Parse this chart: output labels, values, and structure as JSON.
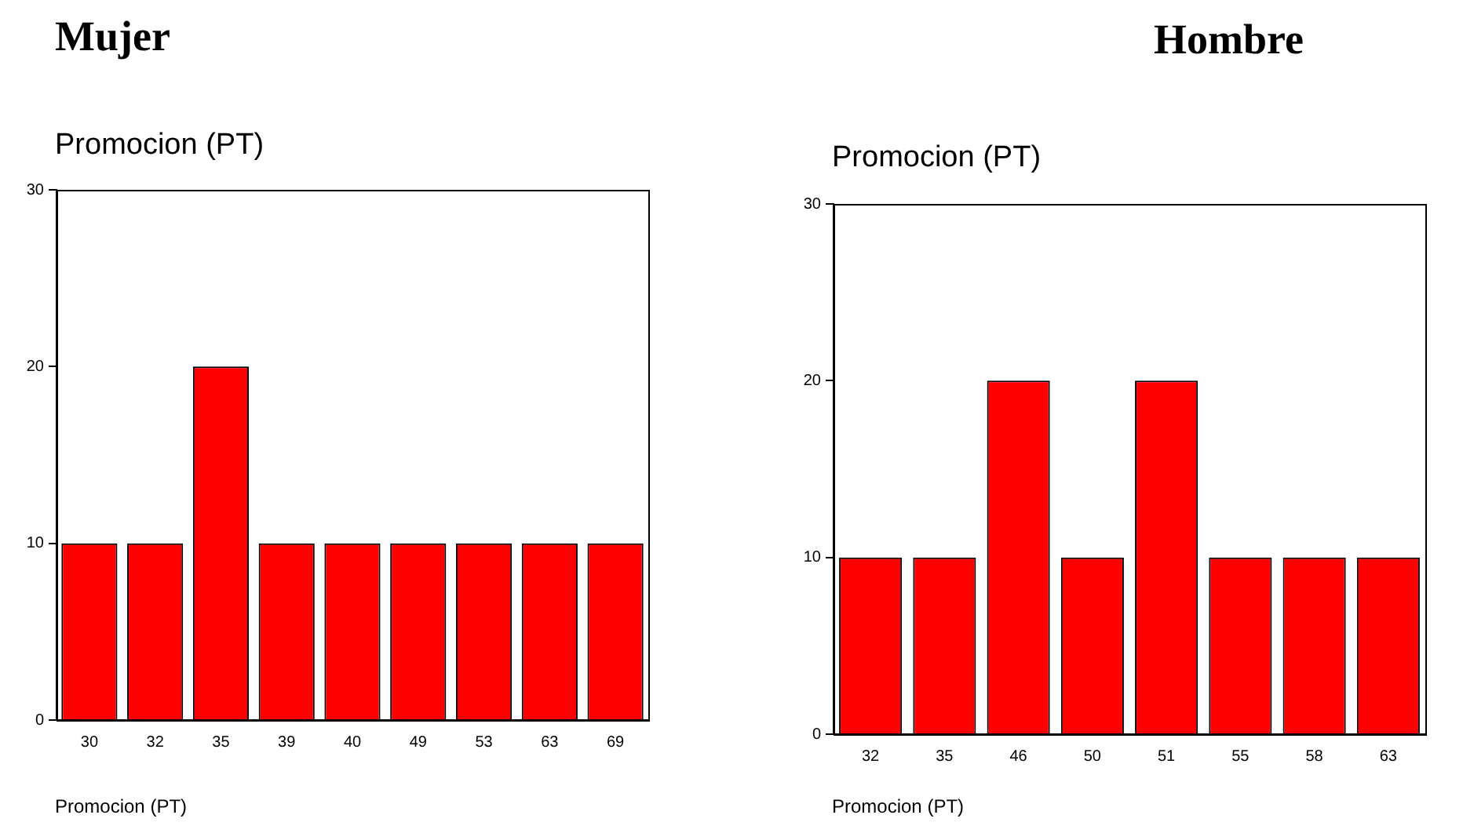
{
  "chart_data": [
    {
      "type": "bar",
      "title": "Mujer",
      "ylabel": "Promocion (PT)",
      "xlabel": "Promocion (PT)",
      "categories": [
        "30",
        "32",
        "35",
        "39",
        "40",
        "49",
        "53",
        "63",
        "69"
      ],
      "values": [
        10,
        10,
        20,
        10,
        10,
        10,
        10,
        10,
        10
      ],
      "color": "#ff0000",
      "ylim": [
        0,
        30
      ],
      "yticks": [
        0,
        10,
        20,
        30
      ]
    },
    {
      "type": "bar",
      "title": "Hombre",
      "ylabel": "Promocion (PT)",
      "xlabel": "Promocion (PT)",
      "categories": [
        "32",
        "35",
        "46",
        "50",
        "51",
        "55",
        "58",
        "63"
      ],
      "values": [
        10,
        10,
        20,
        10,
        20,
        10,
        10,
        10
      ],
      "color": "#ff0000",
      "ylim": [
        0,
        30
      ],
      "yticks": [
        0,
        10,
        20,
        30
      ]
    }
  ]
}
